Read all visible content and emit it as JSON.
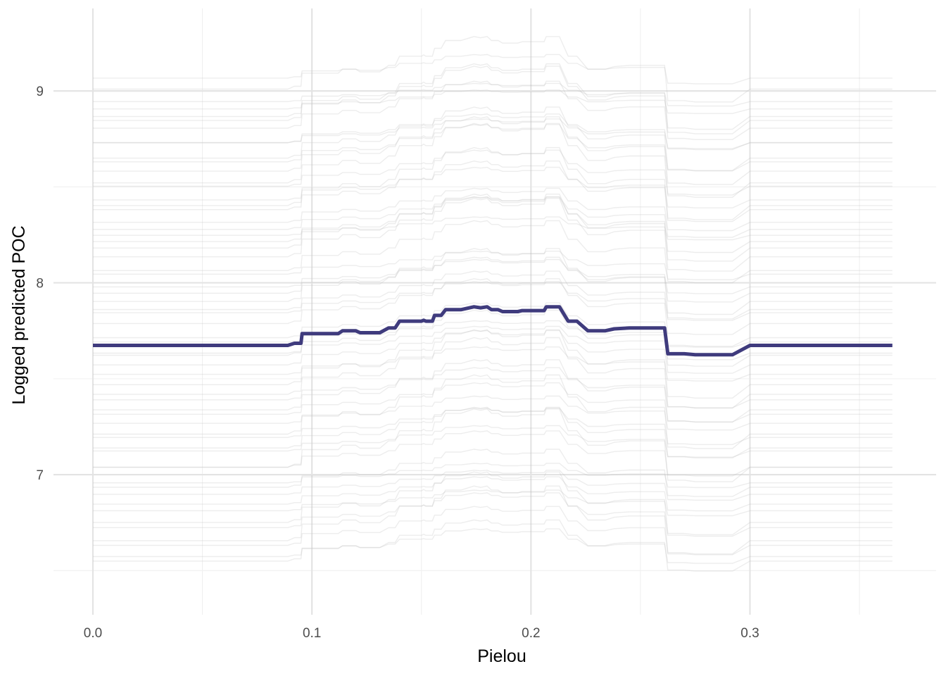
{
  "chart_data": {
    "type": "line",
    "title": "",
    "xlabel": "Pielou",
    "ylabel": "Logged predicted POC",
    "xlim": [
      -0.018,
      0.385
    ],
    "ylim": [
      6.27,
      9.43
    ],
    "x_ticks": [
      0.0,
      0.1,
      0.2,
      0.3
    ],
    "x_tick_labels": [
      "0.0",
      "0.1",
      "0.2",
      "0.3"
    ],
    "x_minor_ticks": [
      0.05,
      0.15,
      0.25,
      0.35
    ],
    "y_ticks": [
      7,
      8,
      9
    ],
    "y_tick_labels": [
      "7",
      "8",
      "9"
    ],
    "y_minor_ticks": [
      6.5,
      7.5,
      8.5
    ],
    "grid": true,
    "legend": "none",
    "ice_curve_count": 60,
    "colors": {
      "average": "#3f3b7d",
      "ice": "#bdbdbd",
      "grid_major": "#e3e3e3",
      "grid_minor": "#f0f0f0"
    },
    "series": [
      {
        "kind": "average",
        "points": [
          [
            0.0,
            7.674
          ],
          [
            0.089,
            7.674
          ],
          [
            0.092,
            7.685
          ],
          [
            0.095,
            7.685
          ],
          [
            0.0955,
            7.735
          ],
          [
            0.112,
            7.735
          ],
          [
            0.114,
            7.75
          ],
          [
            0.12,
            7.75
          ],
          [
            0.122,
            7.74
          ],
          [
            0.131,
            7.74
          ],
          [
            0.135,
            7.765
          ],
          [
            0.138,
            7.765
          ],
          [
            0.14,
            7.8
          ],
          [
            0.15,
            7.8
          ],
          [
            0.151,
            7.805
          ],
          [
            0.152,
            7.8
          ],
          [
            0.155,
            7.8
          ],
          [
            0.156,
            7.83
          ],
          [
            0.159,
            7.83
          ],
          [
            0.161,
            7.86
          ],
          [
            0.168,
            7.86
          ],
          [
            0.174,
            7.875
          ],
          [
            0.177,
            7.87
          ],
          [
            0.18,
            7.875
          ],
          [
            0.182,
            7.86
          ],
          [
            0.185,
            7.86
          ],
          [
            0.187,
            7.85
          ],
          [
            0.194,
            7.85
          ],
          [
            0.196,
            7.855
          ],
          [
            0.206,
            7.855
          ],
          [
            0.207,
            7.875
          ],
          [
            0.213,
            7.875
          ],
          [
            0.217,
            7.8
          ],
          [
            0.221,
            7.8
          ],
          [
            0.226,
            7.75
          ],
          [
            0.234,
            7.75
          ],
          [
            0.238,
            7.76
          ],
          [
            0.245,
            7.765
          ],
          [
            0.261,
            7.765
          ],
          [
            0.2625,
            7.63
          ],
          [
            0.27,
            7.63
          ],
          [
            0.275,
            7.625
          ],
          [
            0.292,
            7.625
          ],
          [
            0.3,
            7.674
          ],
          [
            0.365,
            7.674
          ]
        ]
      }
    ]
  }
}
